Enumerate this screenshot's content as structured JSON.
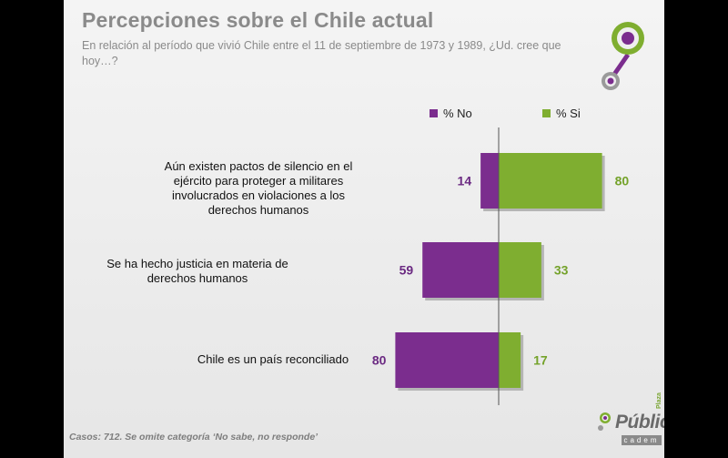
{
  "title": "Percepciones sobre el Chile actual",
  "subtitle": "En relación al período que vivió Chile entre el 11 de septiembre de 1973 y 1989, ¿Ud. cree que hoy…?",
  "footnote": "Casos: 712. Se omite categoría ‘No sabe, no responde’",
  "logo": {
    "brand": "Pública",
    "tag": "Plaza",
    "sub": "cadem"
  },
  "colors": {
    "no": "#7b2d8e",
    "si": "#7fae30",
    "label_no": "#6b2a82",
    "label_si": "#74a22a"
  },
  "chart_data": {
    "type": "bar",
    "orientation": "horizontal-diverging",
    "title": "Percepciones sobre el Chile actual",
    "categories": [
      "Aún existen pactos de silencio en el ejército para proteger a militares involucrados en violaciones a los derechos humanos",
      "Se ha hecho justicia en materia de derechos humanos",
      "Chile es un país reconciliado"
    ],
    "series": [
      {
        "name": "% No",
        "values": [
          14,
          59,
          80
        ]
      },
      {
        "name": "% Si",
        "values": [
          80,
          33,
          17
        ]
      }
    ],
    "legend_position": "top"
  }
}
